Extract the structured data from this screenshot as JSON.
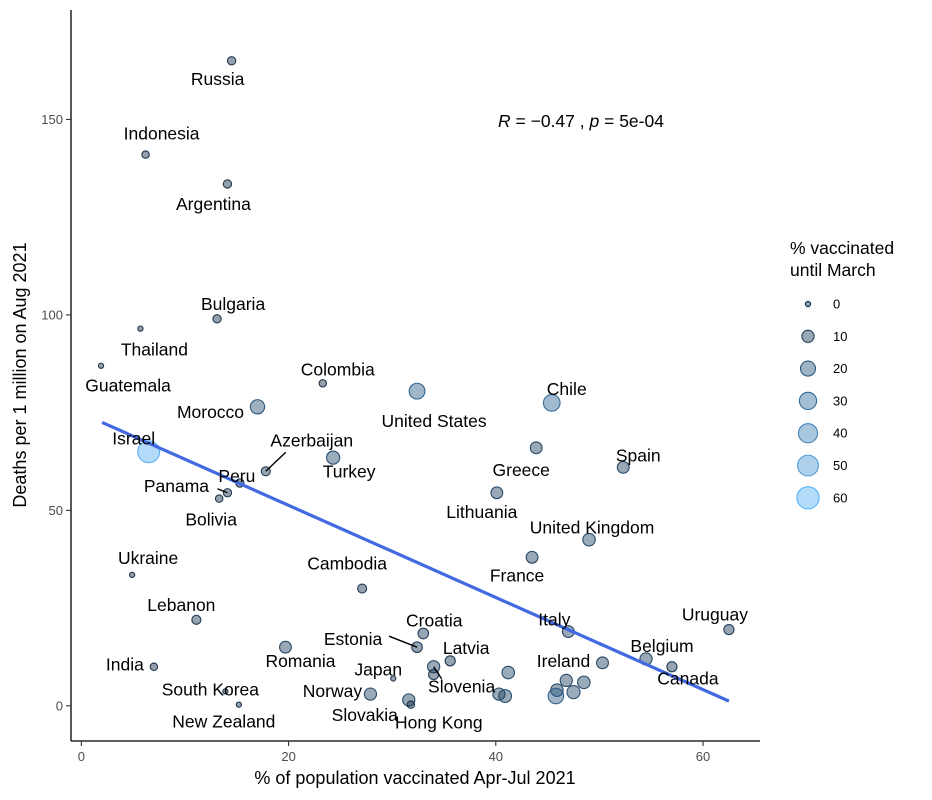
{
  "chart_data": {
    "type": "scatter",
    "xlabel": "% of population vaccinated Apr-Jul 2021",
    "ylabel": "Deaths per 1 million on Aug 2021",
    "xlim": [
      -1,
      65.5
    ],
    "ylim": [
      -9,
      178
    ],
    "xticks": [
      0,
      20,
      40,
      60
    ],
    "yticks": [
      0,
      50,
      100,
      150
    ],
    "stat_annotation": {
      "r_label": "R",
      "r_value": "−0.47",
      "p_label": "p",
      "p_value": "5e-04"
    },
    "regression_line": {
      "x": [
        2,
        62.5
      ],
      "y": [
        72.5,
        1.2
      ],
      "color": "#4169e1"
    },
    "legend": {
      "title_line1": "% vaccinated",
      "title_line2": "until March",
      "entries": [
        "0",
        "10",
        "20",
        "30",
        "40",
        "50",
        "60"
      ]
    },
    "colors": {
      "low": "#132b43",
      "high": "#56b1f7",
      "point_fill_alpha": 0.45
    },
    "points": [
      {
        "name": "Russia",
        "x": 14.5,
        "y": 165,
        "vacc": 2,
        "label": "Russia"
      },
      {
        "name": "Indonesia",
        "x": 6.2,
        "y": 141,
        "vacc": 1,
        "label": "Indonesia"
      },
      {
        "name": "Argentina",
        "x": 14.1,
        "y": 133.5,
        "vacc": 2,
        "label": "Argentina"
      },
      {
        "name": "Bulgaria",
        "x": 13.1,
        "y": 99,
        "vacc": 2,
        "label": "Bulgaria"
      },
      {
        "name": "Thailand",
        "x": 5.7,
        "y": 96.5,
        "vacc": 0,
        "label": "Thailand"
      },
      {
        "name": "Guatemala",
        "x": 1.9,
        "y": 87,
        "vacc": 0,
        "label": "Guatemala"
      },
      {
        "name": "Colombia",
        "x": 23.3,
        "y": 82.5,
        "vacc": 1,
        "label": "Colombia"
      },
      {
        "name": "United States",
        "x": 32.4,
        "y": 80.5,
        "vacc": 23,
        "label": "United States"
      },
      {
        "name": "Chile",
        "x": 45.4,
        "y": 77.5,
        "vacc": 27,
        "label": "Chile"
      },
      {
        "name": "Morocco",
        "x": 17,
        "y": 76.5,
        "vacc": 17,
        "label": "Morocco"
      },
      {
        "name": "Israel",
        "x": 6.5,
        "y": 65,
        "vacc": 58,
        "label": "Israel"
      },
      {
        "name": "Greece",
        "x": 43.9,
        "y": 66,
        "vacc": 9,
        "label": "Greece"
      },
      {
        "name": "Turkey",
        "x": 24.3,
        "y": 63.5,
        "vacc": 13,
        "label": "Turkey"
      },
      {
        "name": "Spain",
        "x": 52.3,
        "y": 61,
        "vacc": 9,
        "label": "Spain"
      },
      {
        "name": "Azerbaijan",
        "x": 17.8,
        "y": 60,
        "vacc": 3,
        "label": "Azerbaijan"
      },
      {
        "name": "Peru",
        "x": 15.3,
        "y": 57,
        "vacc": 2,
        "label": "Peru"
      },
      {
        "name": "Lithuania",
        "x": 40.1,
        "y": 54.5,
        "vacc": 9,
        "label": "Lithuania"
      },
      {
        "name": "Panama",
        "x": 14.1,
        "y": 54.5,
        "vacc": 2,
        "label": "Panama"
      },
      {
        "name": "Bolivia",
        "x": 13.3,
        "y": 53,
        "vacc": 1,
        "label": "Bolivia"
      },
      {
        "name": "United Kingdom",
        "x": 49,
        "y": 42.5,
        "vacc": 11,
        "label": "United Kingdom"
      },
      {
        "name": "France",
        "x": 43.5,
        "y": 38,
        "vacc": 9,
        "label": "France"
      },
      {
        "name": "Ukraine",
        "x": 4.9,
        "y": 33.5,
        "vacc": 0,
        "label": "Ukraine"
      },
      {
        "name": "Cambodia",
        "x": 27.1,
        "y": 30,
        "vacc": 3,
        "label": "Cambodia"
      },
      {
        "name": "Lebanon",
        "x": 11.1,
        "y": 22,
        "vacc": 3,
        "label": "Lebanon"
      },
      {
        "name": "Uruguay",
        "x": 62.5,
        "y": 19.5,
        "vacc": 5,
        "label": "Uruguay"
      },
      {
        "name": "Italy",
        "x": 47,
        "y": 19,
        "vacc": 9,
        "label": "Italy"
      },
      {
        "name": "Croatia",
        "x": 33,
        "y": 18.5,
        "vacc": 6,
        "label": "Croatia"
      },
      {
        "name": "Estonia",
        "x": 32.4,
        "y": 15,
        "vacc": 6,
        "label": "Estonia"
      },
      {
        "name": "Romania",
        "x": 19.7,
        "y": 15,
        "vacc": 9,
        "label": "Romania"
      },
      {
        "name": "Latvia",
        "x": 35.6,
        "y": 11.5,
        "vacc": 5,
        "label": "Latvia"
      },
      {
        "name": "Belgium",
        "x": 54.5,
        "y": 12,
        "vacc": 10,
        "label": "Belgium"
      },
      {
        "name": "Canada",
        "x": 57,
        "y": 10,
        "vacc": 5,
        "label": "Canada"
      },
      {
        "name": "Ireland",
        "x": 50.3,
        "y": 11,
        "vacc": 9,
        "label": "Ireland"
      },
      {
        "name": "India",
        "x": 7,
        "y": 10,
        "vacc": 1,
        "label": "India"
      },
      {
        "name": "Slovenia",
        "x": 34,
        "y": 10,
        "vacc": 10,
        "label": "Slovenia"
      },
      {
        "name": "Slovenia-2",
        "x": 34,
        "y": 8,
        "vacc": 5,
        "label": ""
      },
      {
        "name": "Lithuania-area",
        "x": 41.2,
        "y": 8.5,
        "vacc": 11,
        "label": ""
      },
      {
        "name": "Japan",
        "x": 30.1,
        "y": 7,
        "vacc": 0,
        "label": "Japan"
      },
      {
        "name": "Ireland-2",
        "x": 46.8,
        "y": 6.5,
        "vacc": 10,
        "label": ""
      },
      {
        "name": "Ireland-3",
        "x": 48.5,
        "y": 6,
        "vacc": 11,
        "label": ""
      },
      {
        "name": "Ireland-4",
        "x": 47.5,
        "y": 3.5,
        "vacc": 13,
        "label": ""
      },
      {
        "name": "Ireland-5",
        "x": 45.9,
        "y": 4,
        "vacc": 11,
        "label": ""
      },
      {
        "name": "Ireland-6",
        "x": 45.8,
        "y": 2.5,
        "vacc": 22,
        "label": ""
      },
      {
        "name": "South Korea",
        "x": 13.9,
        "y": 3.7,
        "vacc": 0,
        "label": "South Korea"
      },
      {
        "name": "Norway",
        "x": 27.9,
        "y": 3,
        "vacc": 10,
        "label": "Norway"
      },
      {
        "name": "HK-area-1",
        "x": 40.3,
        "y": 3,
        "vacc": 10,
        "label": ""
      },
      {
        "name": "HK-area-2",
        "x": 40.9,
        "y": 2.5,
        "vacc": 12,
        "label": ""
      },
      {
        "name": "Slovakia",
        "x": 31.6,
        "y": 1.5,
        "vacc": 10,
        "label": "Slovakia"
      },
      {
        "name": "Hong Kong",
        "x": 31.8,
        "y": 0.3,
        "vacc": 1,
        "label": "Hong Kong"
      },
      {
        "name": "New Zealand",
        "x": 15.2,
        "y": 0.3,
        "vacc": 0,
        "label": "New Zealand"
      }
    ]
  }
}
